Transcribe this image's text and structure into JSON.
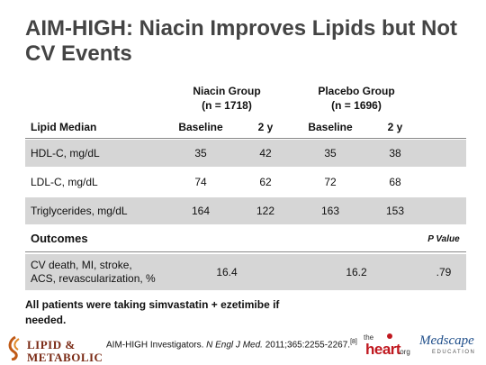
{
  "title": "AIM-HIGH: Niacin Improves Lipids but Not CV Events",
  "groups": [
    {
      "name": "Niacin Group",
      "n": "(n = 1718)"
    },
    {
      "name": "Placebo Group",
      "n": "(n = 1696)"
    }
  ],
  "table_header": {
    "label": "Lipid Median",
    "cols": [
      "Baseline",
      "2 y",
      "Baseline",
      "2 y"
    ]
  },
  "lipid_rows": [
    {
      "label": "HDL-C, mg/dL",
      "values": [
        "35",
        "42",
        "35",
        "38"
      ]
    },
    {
      "label": "LDL-C, mg/dL",
      "values": [
        "74",
        "62",
        "72",
        "68"
      ]
    },
    {
      "label": "Triglycerides, mg/dL",
      "values": [
        "164",
        "122",
        "163",
        "153"
      ]
    }
  ],
  "outcomes": {
    "title": "Outcomes",
    "p_label": "P Value",
    "row": {
      "label_line1": "CV death, MI, stroke,",
      "label_line2": "ACS, revascularization, %",
      "niacin": "16.4",
      "placebo": "16.2",
      "p": ".79"
    }
  },
  "note": "All patients were taking simvastatin + ezetimibe if needed.",
  "citation": {
    "authors": "AIM-HIGH Investigators.",
    "journal": "N Engl J Med.",
    "details": "2011;365:2255-2267.",
    "ref": "[8]"
  },
  "logos": {
    "lipid_line1": "LIPID &",
    "lipid_line2": "METABOLIC",
    "heart_the": "the",
    "heart_name": "heart",
    "heart_org": ".org",
    "medscape_name": "Medscape",
    "medscape_sub": "EDUCATION"
  },
  "colors": {
    "row_shade": "#d6d6d6",
    "title": "#444444",
    "lipid_logo": "#7a2a15",
    "heart_red": "#c0181f",
    "medscape_blue": "#1f4e8a"
  }
}
